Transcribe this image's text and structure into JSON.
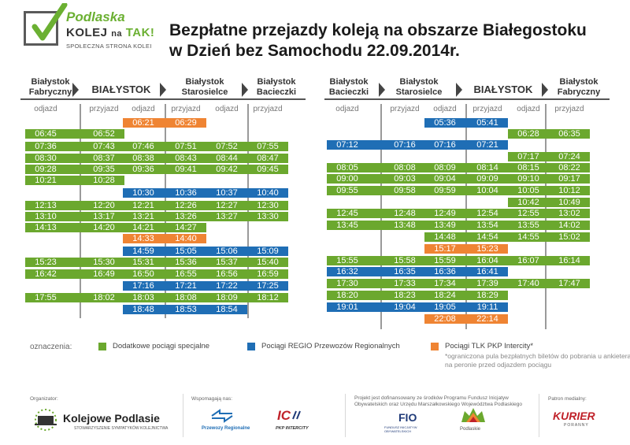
{
  "logo": {
    "line1": "Podlaska",
    "line2a": "KOLEJ",
    "line2b": "na",
    "line2c": "TAK!",
    "line3": "SPOŁECZNA STRONA KOLEI"
  },
  "title": {
    "line1": "Bezpłatne przejazdy koleją na obszarze Białegostoku",
    "line2": "w Dzień bez Samochodu 22.09.2014r."
  },
  "left": {
    "stations": [
      {
        "line1": "Białystok",
        "line2": "Fabryczny",
        "big": false
      },
      {
        "line1": "BIAŁYSTOK",
        "line2": "",
        "big": true
      },
      {
        "line1": "Białystok",
        "line2": "Starosielce",
        "big": false
      },
      {
        "line1": "Białystok",
        "line2": "Bacieczki",
        "big": false
      }
    ],
    "subheaders": [
      "odjazd",
      "przyjazd",
      "odjazd",
      "przyjazd",
      "odjazd",
      "przyjazd"
    ],
    "rows": [
      {
        "c": "o",
        "times": [
          "",
          "",
          "06:21",
          "06:29",
          "",
          ""
        ]
      },
      {
        "c": "g",
        "times": [
          "06:45",
          "06:52",
          "",
          "",
          "",
          ""
        ]
      },
      {
        "c": "g",
        "times": [
          "07:36",
          "07:43",
          "07:46",
          "07:51",
          "07:52",
          "07:55"
        ]
      },
      {
        "c": "g",
        "times": [
          "08:30",
          "08:37",
          "08:38",
          "08:43",
          "08:44",
          "08:47"
        ]
      },
      {
        "c": "g",
        "times": [
          "09:28",
          "09:35",
          "09:36",
          "09:41",
          "09:42",
          "09:45"
        ]
      },
      {
        "c": "g",
        "times": [
          "10:21",
          "10:28",
          "",
          "",
          "",
          ""
        ]
      },
      {
        "c": "b",
        "times": [
          "",
          "",
          "10:30",
          "10:36",
          "10:37",
          "10:40"
        ]
      },
      {
        "c": "g",
        "times": [
          "12:13",
          "12:20",
          "12:21",
          "12:26",
          "12:27",
          "12:30"
        ]
      },
      {
        "c": "g",
        "times": [
          "13:10",
          "13:17",
          "13:21",
          "13:26",
          "13:27",
          "13:30"
        ]
      },
      {
        "c": "g",
        "times": [
          "14:13",
          "14:20",
          "14:21",
          "14:27",
          "",
          ""
        ]
      },
      {
        "c": "o",
        "times": [
          "",
          "",
          "14:33",
          "14:40",
          "",
          ""
        ]
      },
      {
        "c": "b",
        "times": [
          "",
          "",
          "14:59",
          "15:05",
          "15:06",
          "15:09"
        ]
      },
      {
        "c": "g",
        "times": [
          "15:23",
          "15:30",
          "15:31",
          "15:36",
          "15:37",
          "15:40"
        ]
      },
      {
        "c": "g",
        "times": [
          "16:42",
          "16:49",
          "16:50",
          "16:55",
          "16:56",
          "16:59"
        ]
      },
      {
        "c": "b",
        "times": [
          "",
          "",
          "17:16",
          "17:21",
          "17:22",
          "17:25"
        ]
      },
      {
        "c": "g",
        "times": [
          "17:55",
          "18:02",
          "18:03",
          "18:08",
          "18:09",
          "18:12"
        ]
      },
      {
        "c": "b",
        "times": [
          "",
          "",
          "18:48",
          "18:53",
          "18:54",
          ""
        ]
      }
    ]
  },
  "right": {
    "stations": [
      {
        "line1": "Białystok",
        "line2": "Bacieczki",
        "big": false
      },
      {
        "line1": "Białystok",
        "line2": "Starosielce",
        "big": false
      },
      {
        "line1": "BIAŁYSTOK",
        "line2": "",
        "big": true
      },
      {
        "line1": "Białystok",
        "line2": "Fabryczny",
        "big": false
      }
    ],
    "subheaders": [
      "odjazd",
      "przyjazd",
      "odjazd",
      "przyjazd",
      "odjazd",
      "przyjazd"
    ],
    "rows": [
      {
        "c": "b",
        "times": [
          "",
          "",
          "05:36",
          "05:41",
          "",
          ""
        ]
      },
      {
        "c": "g",
        "times": [
          "",
          "",
          "",
          "",
          "06:28",
          "06:35"
        ]
      },
      {
        "c": "b",
        "times": [
          "07:12",
          "07:16",
          "07:16",
          "07:21",
          "",
          ""
        ]
      },
      {
        "c": "g",
        "times": [
          "",
          "",
          "",
          "",
          "07:17",
          "07:24"
        ]
      },
      {
        "c": "g",
        "times": [
          "08:05",
          "08:08",
          "08:09",
          "08:14",
          "08:15",
          "08:22"
        ]
      },
      {
        "c": "g",
        "times": [
          "09:00",
          "09:03",
          "09:04",
          "09:09",
          "09:10",
          "09:17"
        ]
      },
      {
        "c": "g",
        "times": [
          "09:55",
          "09:58",
          "09:59",
          "10:04",
          "10:05",
          "10:12"
        ]
      },
      {
        "c": "g",
        "times": [
          "",
          "",
          "",
          "",
          "10:42",
          "10:49"
        ]
      },
      {
        "c": "g",
        "times": [
          "12:45",
          "12:48",
          "12:49",
          "12:54",
          "12:55",
          "13:02"
        ]
      },
      {
        "c": "g",
        "times": [
          "13:45",
          "13:48",
          "13:49",
          "13:54",
          "13:55",
          "14:02"
        ]
      },
      {
        "c": "g",
        "times": [
          "",
          "",
          "14:48",
          "14:54",
          "14:55",
          "15:02"
        ]
      },
      {
        "c": "o",
        "times": [
          "",
          "",
          "15:17",
          "15:23",
          "",
          ""
        ]
      },
      {
        "c": "g",
        "times": [
          "15:55",
          "15:58",
          "15:59",
          "16:04",
          "16:07",
          "16:14"
        ]
      },
      {
        "c": "b",
        "times": [
          "16:32",
          "16:35",
          "16:36",
          "16:41",
          "",
          ""
        ]
      },
      {
        "c": "g",
        "times": [
          "17:30",
          "17:33",
          "17:34",
          "17:39",
          "17:40",
          "17:47"
        ]
      },
      {
        "c": "g",
        "times": [
          "18:20",
          "18:23",
          "18:24",
          "18:29",
          "",
          ""
        ]
      },
      {
        "c": "b",
        "times": [
          "19:01",
          "19:04",
          "19:05",
          "19:11",
          "",
          ""
        ]
      },
      {
        "c": "o",
        "times": [
          "",
          "",
          "22:08",
          "22:14",
          "",
          ""
        ]
      }
    ]
  },
  "legend": {
    "label": "oznaczenia:",
    "green": "Dodatkowe pociągi specjalne",
    "blue": "Pociągi  REGIO Przewozów Regionalnych",
    "orange": "Pociągi TLK PKP Intercity*",
    "note": "*ograniczona pula bezpłatnych biletów do pobrania u ankietera na peronie przed odjazdem pociągu"
  },
  "colors": {
    "green": "#6ba82e",
    "blue": "#1f6eb5",
    "orange": "#ef8433"
  },
  "footer": {
    "organizer_label": "Organizator:",
    "organizer_name": "Kolejowe Podlasie",
    "organizer_sub": "STOWARZYSZENIE SYMPATYKÓW KOLEJNICTWA",
    "support_label": "Wspomagają nas:",
    "pr_name": "Przewozy Regionalne",
    "ic_name": "PKP INTERCITY",
    "project_text": "Projekt jest dofinansowany ze środków Programu Fundusz Inicjatyw Obywatelskich oraz Urzędu Marszałkowskiego Województwa Podlaskiego",
    "fio_name": "FIO",
    "fio_sub": "FUNDUSZ INICJATYW OBYWATELSKICH",
    "podlaskie": "Podlaskie",
    "patron_label": "Patron medialny:",
    "kurier": "KURIER",
    "kurier_sub": "PORANNY"
  }
}
